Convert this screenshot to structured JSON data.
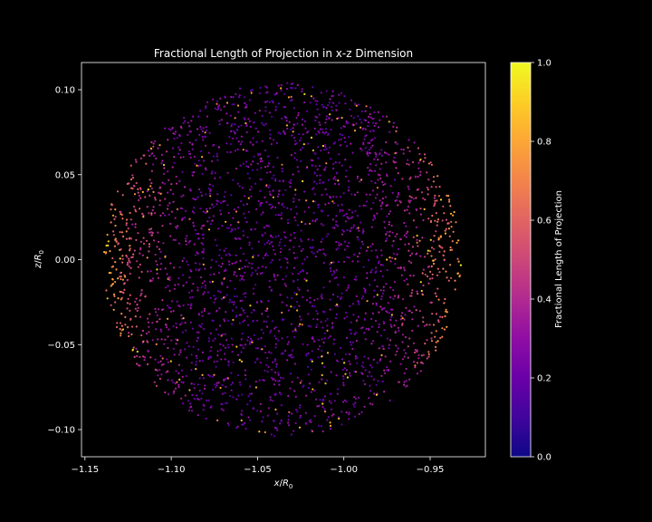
{
  "chart_data": {
    "type": "scatter",
    "title": "Fractional Length of Projection in x-z Dimension",
    "xlabel_var": "x",
    "ylabel_var": "z",
    "label_denominator": "R",
    "label_subscript": "0",
    "xlim": [
      -1.152,
      -0.918
    ],
    "ylim": [
      -0.116,
      0.116
    ],
    "xticks": [
      -1.15,
      -1.1,
      -1.05,
      -1.0,
      -0.95
    ],
    "xtick_labels": [
      "−1.15",
      "−1.10",
      "−1.05",
      "−1.00",
      "−0.95"
    ],
    "yticks": [
      0.1,
      0.05,
      0.0,
      -0.05,
      -0.1
    ],
    "ytick_labels": [
      "0.10",
      "0.05",
      "0.00",
      "−0.05",
      "−0.10"
    ],
    "grid": false,
    "colormap": "plasma",
    "colorbar": {
      "label": "Fractional Length of Projection",
      "range": [
        0.0,
        1.0
      ],
      "ticks": [
        0.0,
        0.2,
        0.4,
        0.6,
        0.8,
        1.0
      ],
      "tick_labels": [
        "0.0",
        "0.2",
        "0.4",
        "0.6",
        "0.8",
        "1.0"
      ]
    },
    "cloud": {
      "center_x": -1.036,
      "center_z": 0.0,
      "radius_x": 0.104,
      "radius_z": 0.104,
      "approx_point_count": 2800,
      "value_trend": "low (~0.1-0.3) in the interior, rising to ~0.5-0.9 near the left and right rims"
    },
    "colors": {
      "background": "#000000",
      "axes": "#ffffff",
      "text": "#ffffff"
    }
  }
}
